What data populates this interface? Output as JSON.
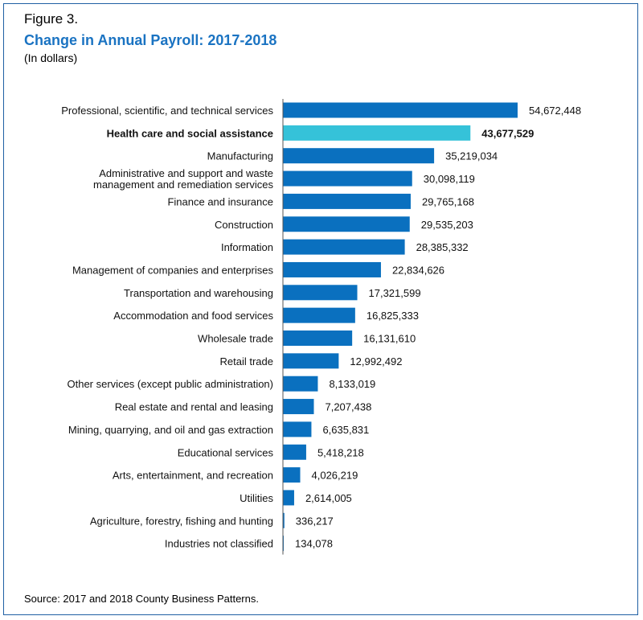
{
  "header": {
    "figure_label": "Figure 3.",
    "title": "Change in Annual Payroll: 2017-2018",
    "subtitle": "(In dollars)"
  },
  "footer": {
    "source": "Source: 2017 and 2018 County Business Patterns."
  },
  "colors": {
    "bar": "#0a70bf",
    "highlight": "#35c2d9",
    "axis": "#555555",
    "border": "#1f5fa3",
    "title": "#1a73c2"
  },
  "chart_data": {
    "type": "bar",
    "orientation": "horizontal",
    "title": "Change in Annual Payroll: 2017-2018",
    "ylabel": "(In dollars)",
    "categories": [
      "Professional, scientific, and technical services",
      "Health care and social assistance",
      "Manufacturing",
      "Administrative and support and waste management and remediation services",
      "Finance and insurance",
      "Construction",
      "Information",
      "Management of companies and enterprises",
      "Transportation and warehousing",
      "Accommodation and food services",
      "Wholesale trade",
      "Retail trade",
      "Other services (except public administration)",
      "Real estate and rental and leasing",
      "Mining, quarrying, and oil and gas extraction",
      "Educational services",
      "Arts, entertainment, and recreation",
      "Utilities",
      "Agriculture, forestry, fishing and hunting",
      "Industries not classified"
    ],
    "category_lines": [
      [
        "Professional, scientific, and technical services"
      ],
      [
        "Health care and social assistance"
      ],
      [
        "Manufacturing"
      ],
      [
        "Administrative and support and waste",
        "management and remediation services"
      ],
      [
        "Finance and insurance"
      ],
      [
        "Construction"
      ],
      [
        "Information"
      ],
      [
        "Management of companies and enterprises"
      ],
      [
        "Transportation and warehousing"
      ],
      [
        "Accommodation and food services"
      ],
      [
        "Wholesale trade"
      ],
      [
        "Retail trade"
      ],
      [
        "Other services (except public administration)"
      ],
      [
        "Real estate and rental and leasing"
      ],
      [
        "Mining, quarrying, and oil and gas extraction"
      ],
      [
        "Educational services"
      ],
      [
        "Arts, entertainment, and recreation"
      ],
      [
        "Utilities"
      ],
      [
        "Agriculture, forestry, fishing and hunting"
      ],
      [
        "Industries not classified"
      ]
    ],
    "values": [
      54672448,
      43677529,
      35219034,
      30098119,
      29765168,
      29535203,
      28385332,
      22834626,
      17321599,
      16825333,
      16131610,
      12992492,
      8133019,
      7207438,
      6635831,
      5418218,
      4026219,
      2614005,
      336217,
      134078
    ],
    "value_labels": [
      "54,672,448",
      "43,677,529",
      "35,219,034",
      "30,098,119",
      "29,765,168",
      "29,535,203",
      "28,385,332",
      "22,834,626",
      "17,321,599",
      "16,825,333",
      "16,131,610",
      "12,992,492",
      "8,133,019",
      "7,207,438",
      "6,635,831",
      "5,418,218",
      "4,026,219",
      "2,614,005",
      "336,217",
      "134,078"
    ],
    "highlight_index": 1,
    "xlim": [
      0,
      60000000
    ],
    "grid": false,
    "legend": "none"
  }
}
